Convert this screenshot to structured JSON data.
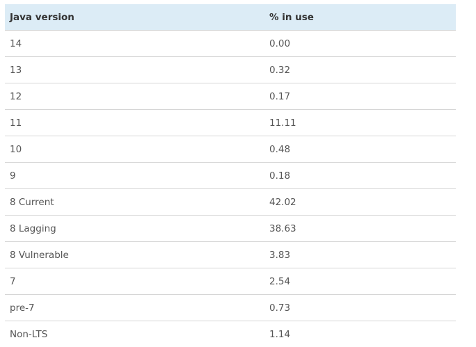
{
  "table": {
    "headers": [
      "Java version",
      "% in use"
    ],
    "rows": [
      {
        "version": "14",
        "percent": "0.00"
      },
      {
        "version": "13",
        "percent": "0.32"
      },
      {
        "version": "12",
        "percent": "0.17"
      },
      {
        "version": "11",
        "percent": "11.11"
      },
      {
        "version": "10",
        "percent": "0.48"
      },
      {
        "version": "9",
        "percent": "0.18"
      },
      {
        "version": "8 Current",
        "percent": "42.02"
      },
      {
        "version": "8 Lagging",
        "percent": "38.63"
      },
      {
        "version": "8 Vulnerable",
        "percent": "3.83"
      },
      {
        "version": "7",
        "percent": "2.54"
      },
      {
        "version": "pre-7",
        "percent": "0.73"
      },
      {
        "version": "Non-LTS",
        "percent": "1.14"
      }
    ]
  },
  "colors": {
    "header_background": "#dcecf6",
    "header_text": "#333333",
    "cell_text": "#555555",
    "row_divider": "#d6d6d6"
  }
}
